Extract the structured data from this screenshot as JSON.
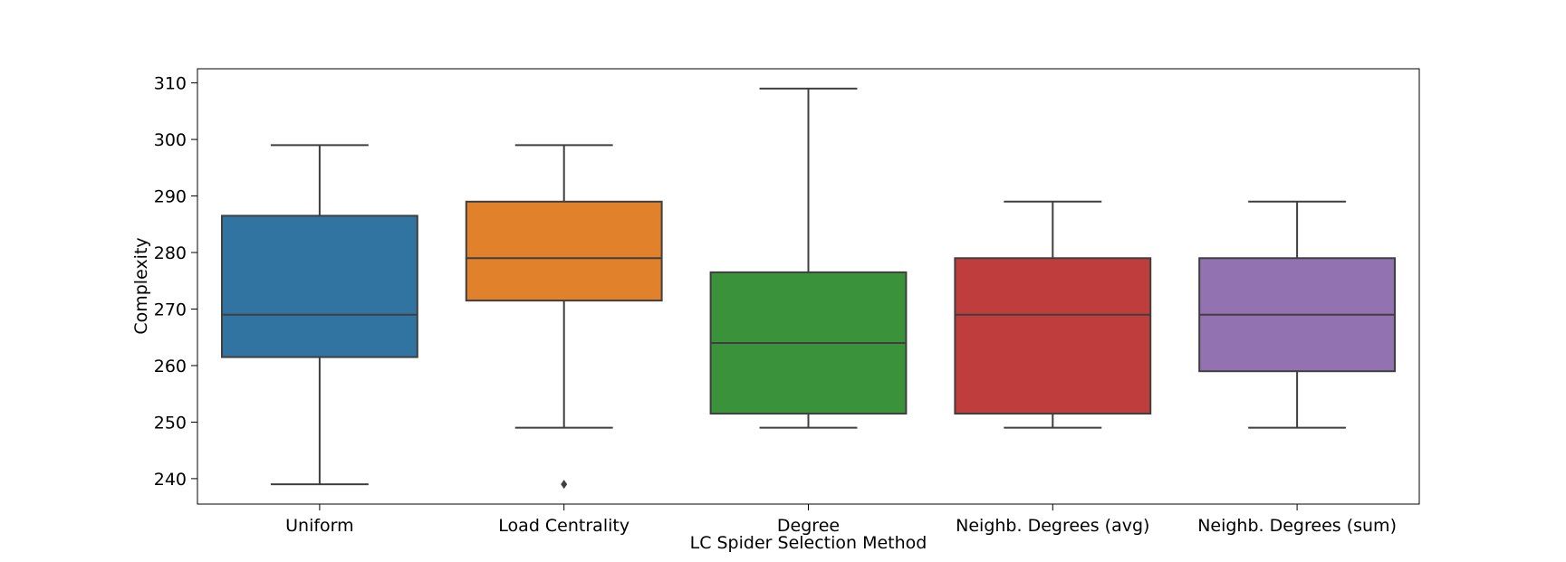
{
  "chart_data": {
    "type": "box",
    "title": "",
    "xlabel": "LC Spider Selection Method",
    "ylabel": "Complexity",
    "ylim": [
      235.5,
      312.5
    ],
    "yticks": [
      240,
      250,
      260,
      270,
      280,
      290,
      300,
      310
    ],
    "grid": false,
    "categories": [
      "Uniform",
      "Load Centrality",
      "Degree",
      "Neighb. Degrees (avg)",
      "Neighb. Degrees (sum)"
    ],
    "boxes": [
      {
        "category": "Uniform",
        "whisker_low": 239,
        "q1": 261.5,
        "median": 269,
        "q3": 286.5,
        "whisker_high": 299,
        "outliers": [],
        "color": "#3274a1"
      },
      {
        "category": "Load Centrality",
        "whisker_low": 249,
        "q1": 271.5,
        "median": 279,
        "q3": 289,
        "whisker_high": 299,
        "outliers": [
          239
        ],
        "color": "#e1812c"
      },
      {
        "category": "Degree",
        "whisker_low": 249,
        "q1": 251.5,
        "median": 264,
        "q3": 276.5,
        "whisker_high": 309,
        "outliers": [],
        "color": "#3a923a"
      },
      {
        "category": "Neighb. Degrees (avg)",
        "whisker_low": 249,
        "q1": 251.5,
        "median": 269,
        "q3": 279,
        "whisker_high": 289,
        "outliers": [],
        "color": "#c03d3e"
      },
      {
        "category": "Neighb. Degrees (sum)",
        "whisker_low": 249,
        "q1": 259,
        "median": 269,
        "q3": 279,
        "whisker_high": 289,
        "outliers": [],
        "color": "#9372b2"
      }
    ]
  }
}
